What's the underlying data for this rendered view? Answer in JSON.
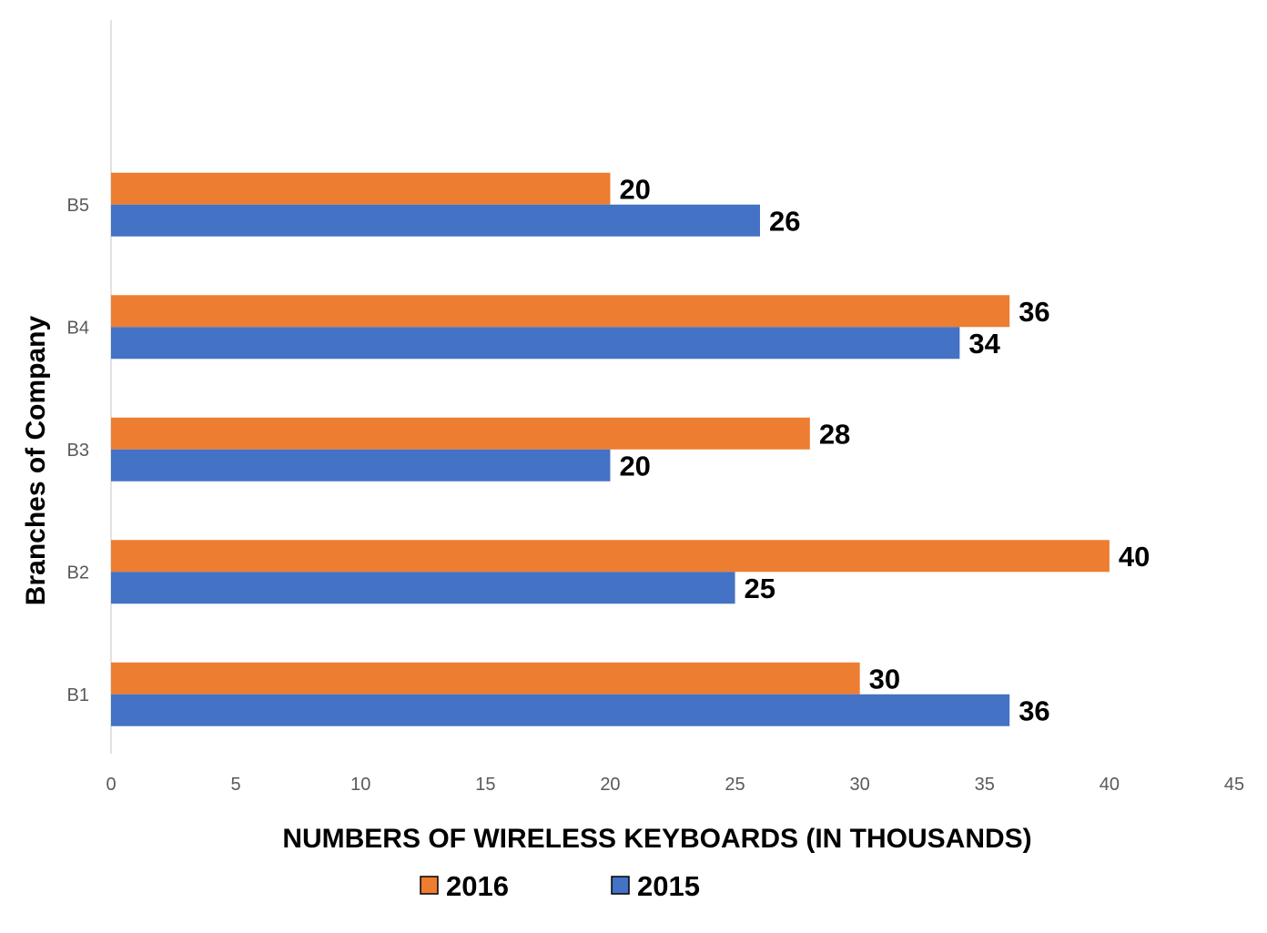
{
  "chart_data": {
    "type": "bar",
    "orientation": "horizontal",
    "categories": [
      "B1",
      "B2",
      "B3",
      "B4",
      "B5"
    ],
    "series": [
      {
        "name": "2016",
        "color": "#ED7D31",
        "values": [
          30,
          40,
          28,
          36,
          20
        ]
      },
      {
        "name": "2015",
        "color": "#4472C4",
        "values": [
          36,
          25,
          20,
          34,
          26
        ]
      }
    ],
    "xlabel": "NUMBERS OF WIRELESS KEYBOARDS (IN THOUSANDS)",
    "ylabel": "Branches of Company",
    "xlim": [
      0,
      45
    ],
    "xticks": [
      0,
      5,
      10,
      15,
      20,
      25,
      30,
      35,
      40,
      45
    ],
    "grid": false,
    "legend": "bottom",
    "data_labels": true
  }
}
